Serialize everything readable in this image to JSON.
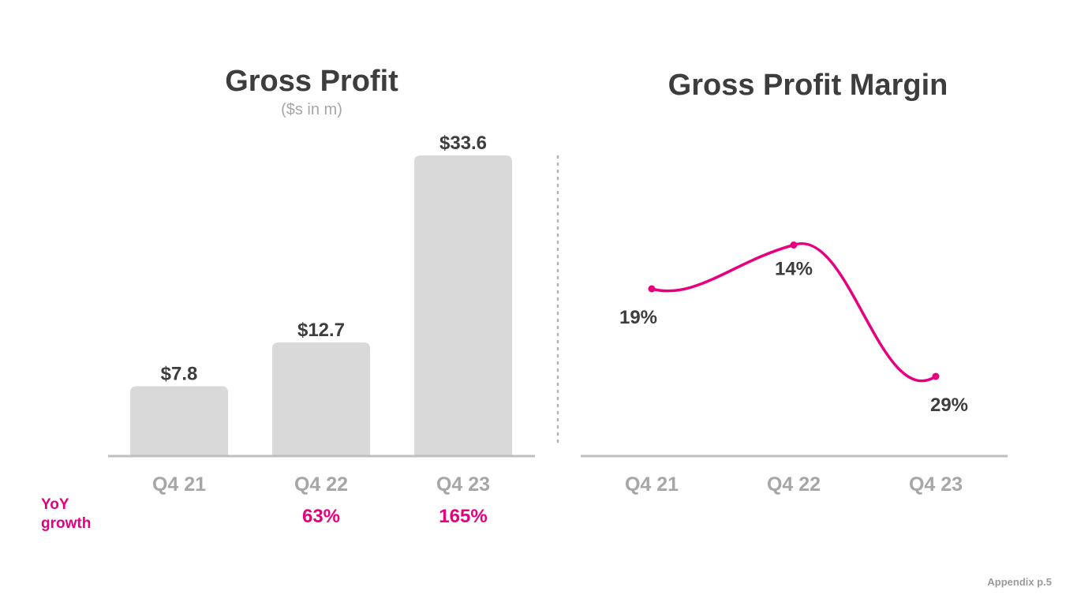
{
  "chart_data": [
    {
      "type": "bar",
      "title": "Gross Profit",
      "subtitle": "($s in m)",
      "categories": [
        "Q4 21",
        "Q4 22",
        "Q4 23"
      ],
      "values": [
        7.8,
        12.7,
        33.6
      ],
      "value_labels": [
        "$7.8",
        "$12.7",
        "$33.6"
      ],
      "ylim": [
        0,
        33.6
      ],
      "bar_color": "#d9d9d9",
      "axis_color": "#bfbfbf",
      "grid": false,
      "yoy_growth": {
        "label": "YoY growth",
        "values": [
          "",
          "63%",
          "165%"
        ],
        "color": "#e6007e"
      }
    },
    {
      "type": "line",
      "title": "Gross Profit Margin",
      "categories": [
        "Q4 21",
        "Q4 22",
        "Q4 23"
      ],
      "values": [
        19,
        14,
        29
      ],
      "value_labels": [
        "19%",
        "14%",
        "29%"
      ],
      "line_color": "#e6007e",
      "smooth": true,
      "grid": false
    }
  ],
  "footer": "Appendix p.5"
}
